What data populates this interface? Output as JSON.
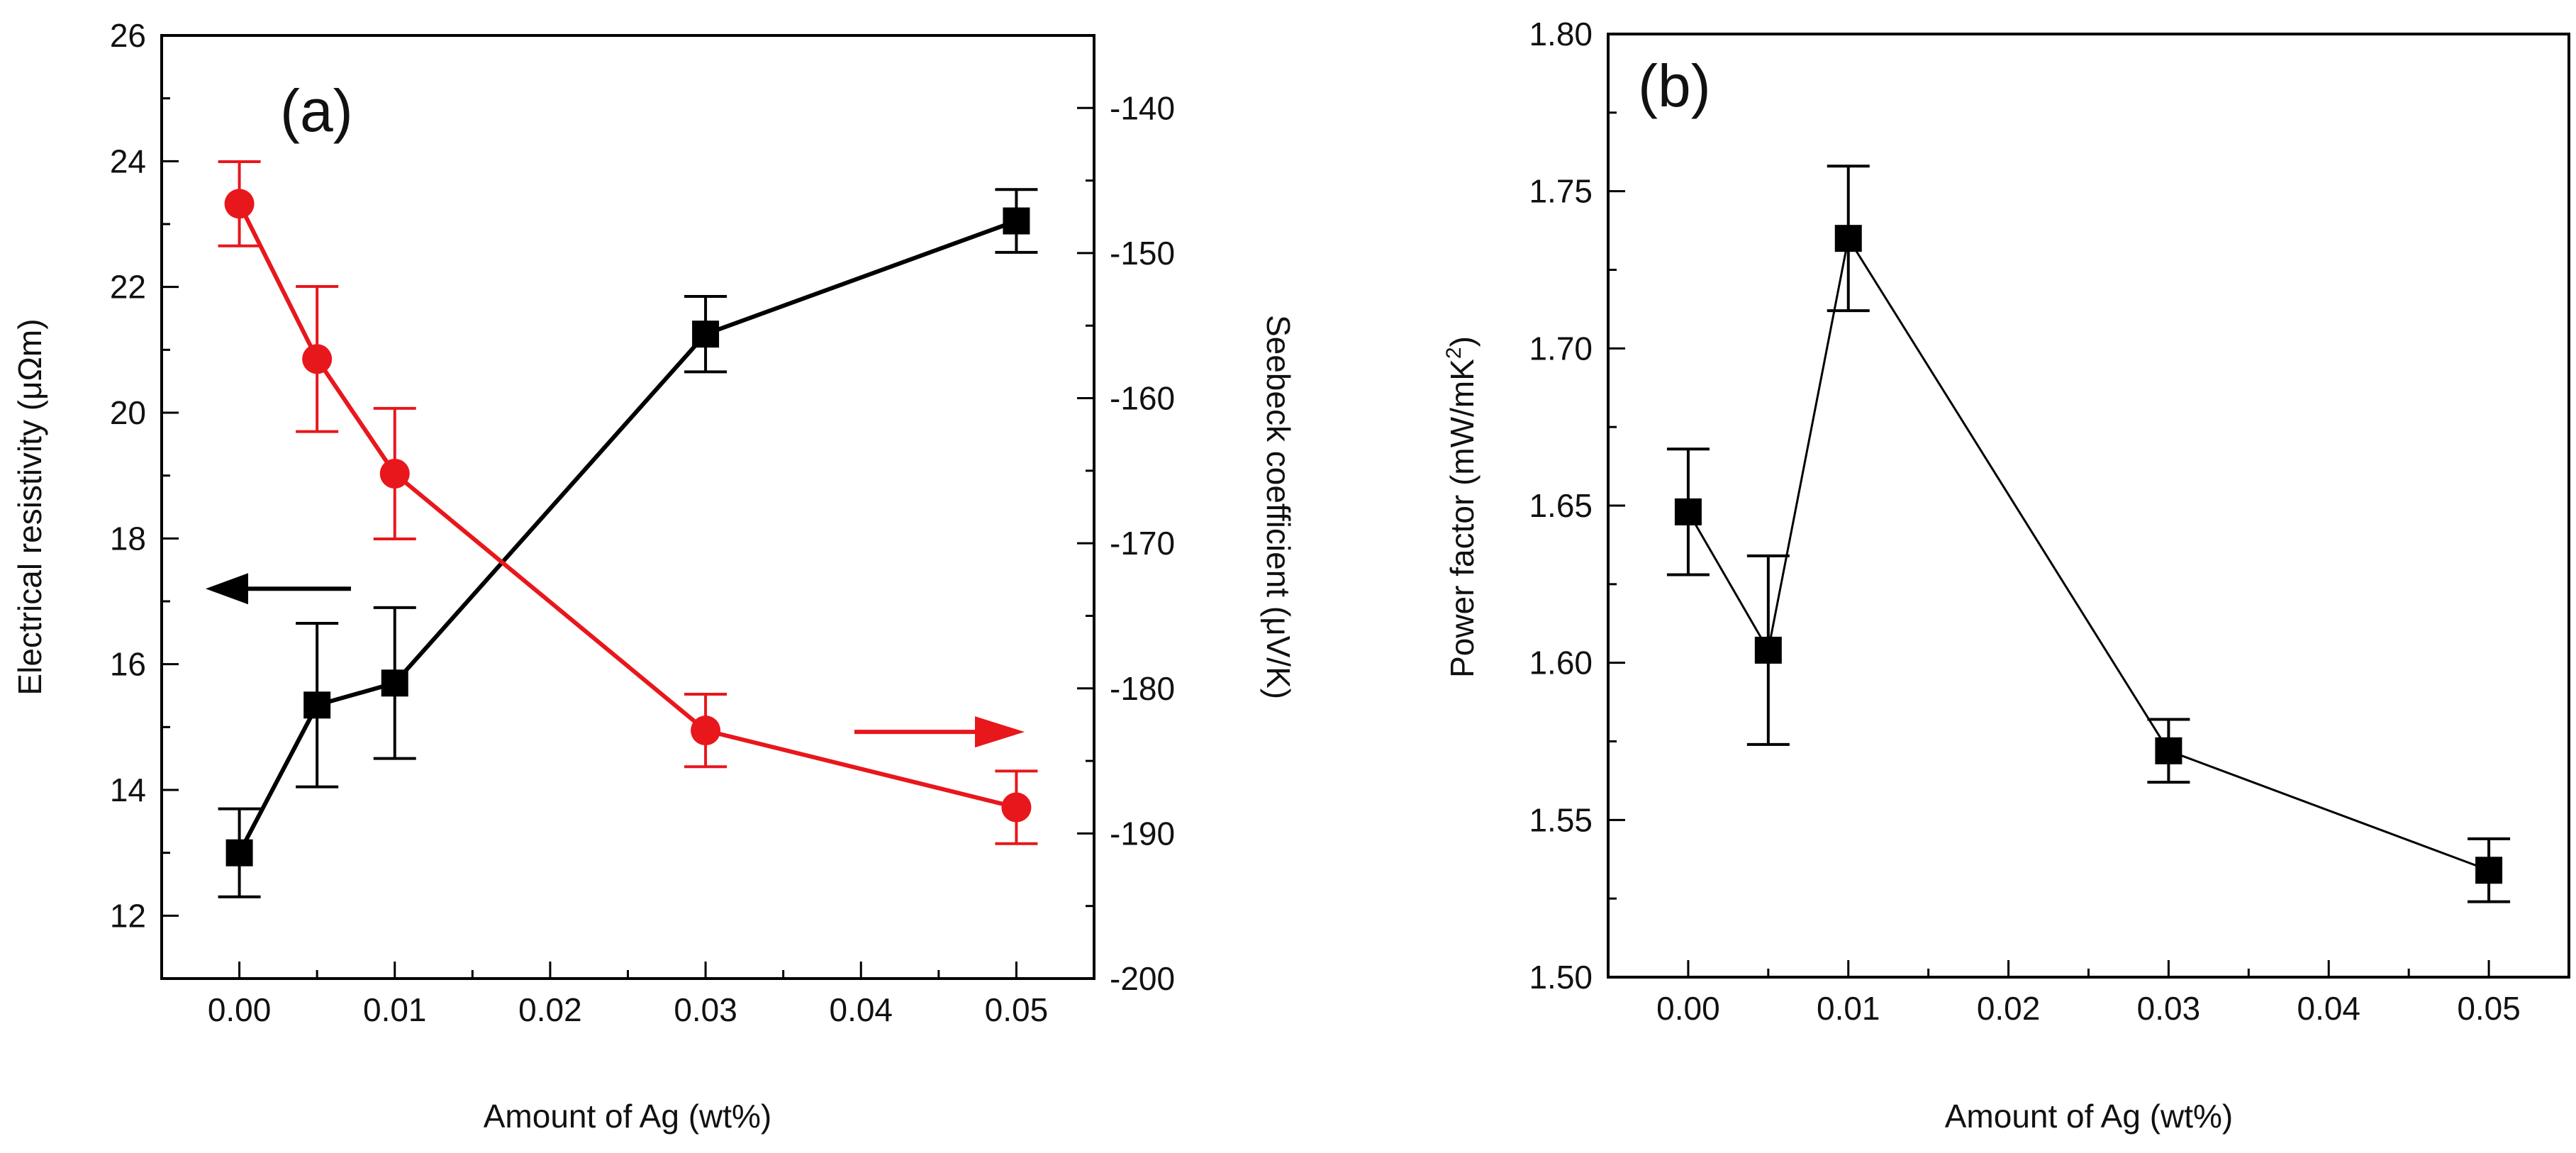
{
  "figure": {
    "panels": [
      "(a)",
      "(b)"
    ]
  },
  "chart_data": [
    {
      "type": "line",
      "panel_label": "(a)",
      "xlabel": "Amount of Ag (wt%)",
      "x_ticks": [
        "0.00",
        "0.01",
        "0.02",
        "0.03",
        "0.04",
        "0.05"
      ],
      "xlim": [
        -0.005,
        0.055
      ],
      "ylabel_left": "Electrical resistivity (μΩm)",
      "ylim_left": [
        11,
        26
      ],
      "y_ticks_left": [
        "12",
        "14",
        "16",
        "18",
        "20",
        "22",
        "24",
        "26"
      ],
      "ylabel_right": "Seebeck coefficient (μV/K)",
      "ylim_right": [
        -200,
        -135
      ],
      "y_ticks_right": [
        "-200",
        "-190",
        "-180",
        "-170",
        "-160",
        "-150",
        "-140"
      ],
      "grid": false,
      "series": [
        {
          "name": "Electrical resistivity",
          "axis": "left",
          "color": "#000000",
          "marker": "square",
          "x": [
            0.0,
            0.005,
            0.01,
            0.03,
            0.05
          ],
          "y": [
            13.0,
            15.35,
            15.7,
            21.25,
            23.05
          ],
          "err": [
            0.7,
            1.3,
            1.2,
            0.6,
            0.5
          ]
        },
        {
          "name": "Seebeck coefficient",
          "axis": "right",
          "color": "#e8171c",
          "marker": "circle",
          "x": [
            0.0,
            0.005,
            0.01,
            0.03,
            0.05
          ],
          "y": [
            -146.6,
            -157.3,
            -165.2,
            -182.9,
            -188.2
          ],
          "err": [
            2.9,
            5.0,
            4.5,
            2.5,
            2.5
          ]
        }
      ],
      "annotations": [
        {
          "kind": "arrow",
          "direction": "left",
          "points_to": "left axis",
          "color": "#000000",
          "at_y": 17.2
        },
        {
          "kind": "arrow",
          "direction": "right",
          "points_to": "right axis",
          "color": "#e8171c",
          "at_y": -183
        }
      ]
    },
    {
      "type": "line",
      "panel_label": "(b)",
      "xlabel": "Amount of Ag (wt%)",
      "x_ticks": [
        "0.00",
        "0.01",
        "0.02",
        "0.03",
        "0.04",
        "0.05"
      ],
      "xlim": [
        -0.005,
        0.055
      ],
      "ylabel": "Power factor (mW/mK",
      "ylabel_sup": "2",
      "ylabel_close": ")",
      "ylim": [
        1.5,
        1.8
      ],
      "y_ticks": [
        "1.50",
        "1.55",
        "1.60",
        "1.65",
        "1.70",
        "1.75",
        "1.80"
      ],
      "grid": false,
      "series": [
        {
          "name": "Power factor",
          "color": "#000000",
          "marker": "square",
          "x": [
            0.0,
            0.005,
            0.01,
            0.03,
            0.05
          ],
          "y": [
            1.648,
            1.604,
            1.735,
            1.572,
            1.534
          ],
          "err": [
            0.02,
            0.03,
            0.023,
            0.01,
            0.01
          ]
        }
      ]
    }
  ]
}
